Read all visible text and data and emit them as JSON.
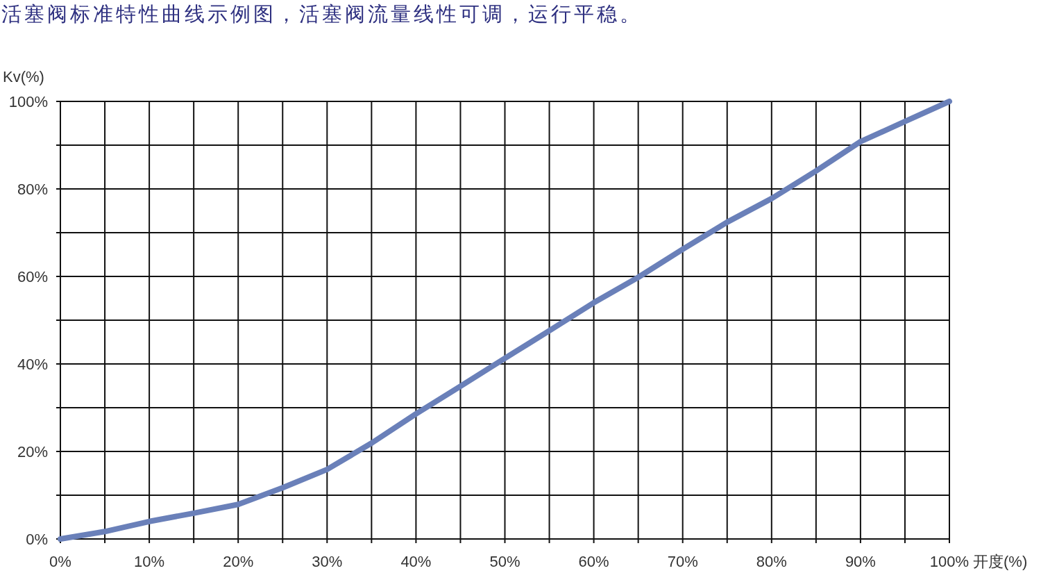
{
  "chart_data": {
    "type": "line",
    "title": "活塞阀标准特性曲线示例图，活塞阀流量线性可调，运行平稳。",
    "xlabel": "开度(%)",
    "ylabel": "Kv(%)",
    "x": [
      0,
      5,
      10,
      15,
      20,
      25,
      30,
      35,
      40,
      45,
      50,
      55,
      60,
      65,
      70,
      75,
      80,
      85,
      90,
      95,
      100
    ],
    "series": [
      {
        "color": "#6a80b9",
        "values": [
          0,
          1.7,
          4,
          5.9,
          7.9,
          11.7,
          15.9,
          21.9,
          28.6,
          34.9,
          41.3,
          47.6,
          54,
          59.8,
          66.2,
          72.4,
          77.8,
          84.1,
          90.8,
          95.4,
          100
        ]
      }
    ],
    "xlim": [
      0,
      100
    ],
    "ylim": [
      0,
      100
    ],
    "xticks": [
      {
        "value": 0,
        "label": "0%"
      },
      {
        "value": 5,
        "label": null
      },
      {
        "value": 10,
        "label": "10%"
      },
      {
        "value": 15,
        "label": null
      },
      {
        "value": 20,
        "label": "20%"
      },
      {
        "value": 25,
        "label": null
      },
      {
        "value": 30,
        "label": "30%"
      },
      {
        "value": 35,
        "label": null
      },
      {
        "value": 40,
        "label": "40%"
      },
      {
        "value": 45,
        "label": null
      },
      {
        "value": 50,
        "label": "50%"
      },
      {
        "value": 55,
        "label": null
      },
      {
        "value": 60,
        "label": "60%"
      },
      {
        "value": 65,
        "label": null
      },
      {
        "value": 70,
        "label": "70%"
      },
      {
        "value": 75,
        "label": null
      },
      {
        "value": 80,
        "label": "80%"
      },
      {
        "value": 85,
        "label": null
      },
      {
        "value": 90,
        "label": "90%"
      },
      {
        "value": 95,
        "label": null
      },
      {
        "value": 100,
        "label": "100%"
      }
    ],
    "yticks": [
      {
        "value": 0,
        "label": "0%"
      },
      {
        "value": 10,
        "label": null
      },
      {
        "value": 20,
        "label": "20%"
      },
      {
        "value": 30,
        "label": null
      },
      {
        "value": 40,
        "label": "40%"
      },
      {
        "value": 50,
        "label": null
      },
      {
        "value": 60,
        "label": "60%"
      },
      {
        "value": 70,
        "label": null
      },
      {
        "value": 80,
        "label": "80%"
      },
      {
        "value": 90,
        "label": null
      },
      {
        "value": 100,
        "label": "100%"
      }
    ],
    "grid": true
  }
}
